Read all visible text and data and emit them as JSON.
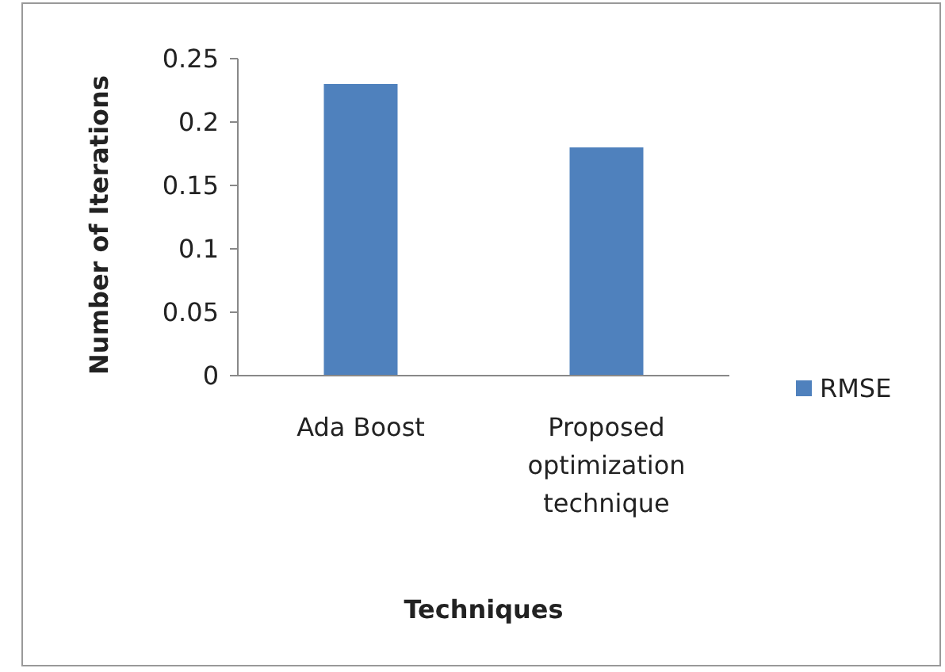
{
  "chart_data": {
    "type": "bar",
    "xlabel": "Techniques",
    "ylabel": "Number of Iterations",
    "categories": [
      "Ada Boost",
      "Proposed optimization technique"
    ],
    "series": [
      {
        "name": "RMSE",
        "color": "#4f81bd",
        "values": [
          0.23,
          0.18
        ]
      }
    ],
    "ylim": [
      0,
      0.25
    ],
    "yticks": [
      0,
      0.05,
      0.1,
      0.15,
      0.2,
      0.25
    ],
    "legend": "right"
  }
}
